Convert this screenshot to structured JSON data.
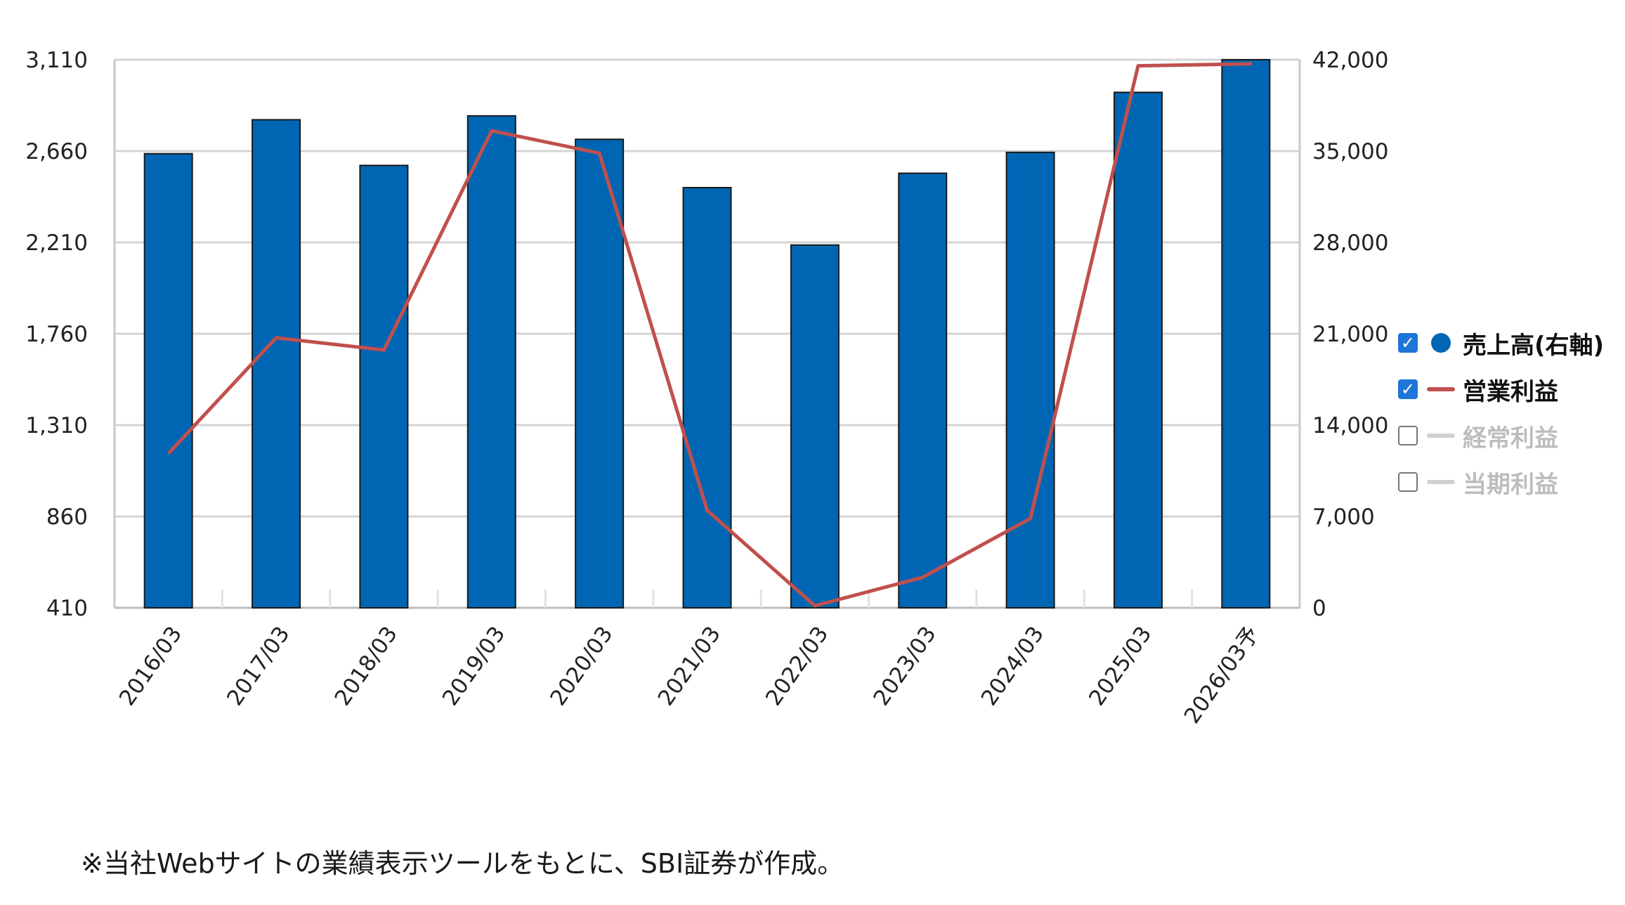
{
  "chart_data": {
    "type": "bar",
    "categories": [
      "2016/03",
      "2017/03",
      "2018/03",
      "2019/03",
      "2020/03",
      "2021/03",
      "2022/03",
      "2023/03",
      "2024/03",
      "2025/03",
      "2026/03予"
    ],
    "series": [
      {
        "name": "売上高(右軸)",
        "type": "bar",
        "axis": "right",
        "color": "#0066b3",
        "values": [
          34800,
          37400,
          33900,
          37700,
          35900,
          32200,
          27800,
          33300,
          34900,
          39500,
          42000
        ]
      },
      {
        "name": "営業利益",
        "type": "line",
        "axis": "left",
        "color": "#c0504d",
        "values": [
          1170,
          1740,
          1680,
          2760,
          2650,
          890,
          420,
          560,
          850,
          3080,
          3090
        ]
      }
    ],
    "y_left": {
      "ticks": [
        "410",
        "860",
        "1,310",
        "1,760",
        "2,210",
        "2,660",
        "3,110"
      ],
      "min": 410,
      "max": 3110
    },
    "y_right": {
      "ticks": [
        "0",
        "7,000",
        "14,000",
        "21,000",
        "28,000",
        "35,000",
        "42,000"
      ],
      "min": 0,
      "max": 42000
    },
    "grid": true,
    "legend": {
      "position": "right",
      "items": [
        {
          "label": "売上高(右軸)",
          "checked": true,
          "marker": "circle",
          "color": "#0066b3"
        },
        {
          "label": "営業利益",
          "checked": true,
          "marker": "line",
          "color": "#c0504d"
        },
        {
          "label": "経常利益",
          "checked": false,
          "marker": "line",
          "color": "#d0d0d0"
        },
        {
          "label": "当期利益",
          "checked": false,
          "marker": "line",
          "color": "#d0d0d0"
        }
      ]
    }
  },
  "footnote": "※当社Webサイトの業績表示ツールをもとに、SBI証券が作成。"
}
